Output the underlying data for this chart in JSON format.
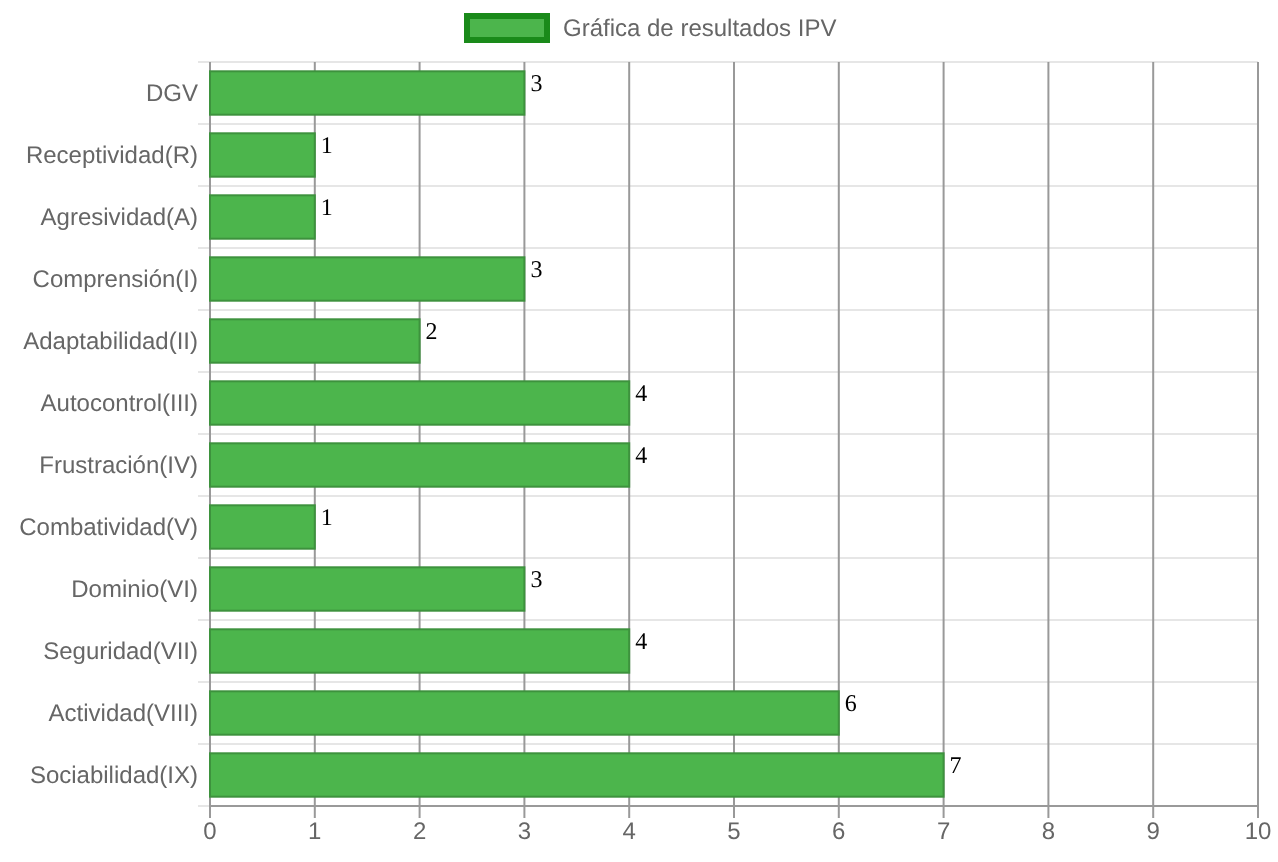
{
  "chart_data": {
    "type": "bar",
    "orientation": "horizontal",
    "categories": [
      "DGV",
      "Receptividad(R)",
      "Agresividad(A)",
      "Comprensión(I)",
      "Adaptabilidad(II)",
      "Autocontrol(III)",
      "Frustración(IV)",
      "Combatividad(V)",
      "Dominio(VI)",
      "Seguridad(VII)",
      "Actividad(VIII)",
      "Sociabilidad(IX)"
    ],
    "series": [
      {
        "name": "Gráfica de resultados IPV",
        "color": "#4cb54c",
        "values": [
          3,
          1,
          1,
          3,
          2,
          4,
          4,
          1,
          3,
          4,
          6,
          7
        ]
      }
    ],
    "xlim": [
      0,
      10
    ],
    "xticks": [
      0,
      1,
      2,
      3,
      4,
      5,
      6,
      7,
      8,
      9,
      10
    ],
    "grid": true,
    "legend": "top",
    "data_labels": true
  }
}
